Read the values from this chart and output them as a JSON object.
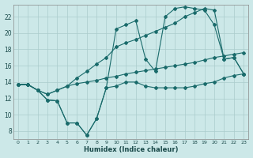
{
  "xlabel": "Humidex (Indice chaleur)",
  "background_color": "#cce8e8",
  "grid_color": "#aacccc",
  "line_color": "#1a6b6b",
  "xlim": [
    -0.5,
    23.5
  ],
  "ylim": [
    7,
    23.5
  ],
  "yticks": [
    8,
    10,
    12,
    14,
    16,
    18,
    20,
    22
  ],
  "xticks": [
    0,
    1,
    2,
    3,
    4,
    5,
    6,
    7,
    8,
    9,
    10,
    11,
    12,
    13,
    14,
    15,
    16,
    17,
    18,
    19,
    20,
    21,
    22,
    23
  ],
  "line1_x": [
    0,
    1,
    2,
    3,
    4,
    5,
    6,
    7,
    8,
    9,
    10,
    11,
    12,
    13,
    14,
    15,
    16,
    17,
    18,
    19,
    20,
    21,
    22,
    23
  ],
  "line1_y": [
    13.7,
    13.7,
    13.0,
    11.8,
    11.7,
    9.0,
    9.0,
    7.5,
    9.5,
    13.3,
    13.5,
    14.0,
    14.0,
    13.5,
    13.3,
    13.3,
    13.3,
    13.3,
    13.5,
    13.8,
    14.0,
    14.5,
    14.8,
    15.0
  ],
  "line2_x": [
    0,
    1,
    2,
    3,
    4,
    5,
    6,
    7,
    8,
    9,
    10,
    11,
    12,
    13,
    14,
    15,
    16,
    17,
    18,
    19,
    20,
    21,
    22,
    23
  ],
  "line2_y": [
    13.7,
    13.7,
    13.0,
    11.8,
    11.7,
    9.0,
    9.0,
    7.5,
    9.5,
    13.3,
    20.5,
    21.0,
    21.5,
    16.8,
    15.3,
    22.0,
    23.0,
    23.2,
    23.0,
    22.8,
    21.0,
    16.8,
    17.0,
    15.0
  ],
  "line3_x": [
    0,
    1,
    2,
    3,
    4,
    5,
    6,
    7,
    8,
    9,
    10,
    11,
    12,
    13,
    14,
    15,
    16,
    17,
    18,
    19,
    20,
    21,
    22,
    23
  ],
  "line3_y": [
    13.7,
    13.7,
    13.0,
    12.5,
    13.0,
    13.5,
    14.5,
    15.3,
    16.2,
    17.0,
    18.3,
    18.8,
    19.2,
    19.7,
    20.2,
    20.7,
    21.2,
    22.0,
    22.5,
    23.0,
    22.8,
    16.8,
    17.0,
    15.0
  ],
  "line4_x": [
    0,
    1,
    2,
    3,
    4,
    5,
    6,
    7,
    8,
    9,
    10,
    11,
    12,
    13,
    14,
    15,
    16,
    17,
    18,
    19,
    20,
    21,
    22,
    23
  ],
  "line4_y": [
    13.7,
    13.7,
    13.0,
    12.5,
    13.0,
    13.5,
    13.8,
    14.0,
    14.2,
    14.5,
    14.7,
    15.0,
    15.2,
    15.4,
    15.6,
    15.8,
    16.0,
    16.2,
    16.4,
    16.7,
    17.0,
    17.2,
    17.4,
    17.6
  ]
}
